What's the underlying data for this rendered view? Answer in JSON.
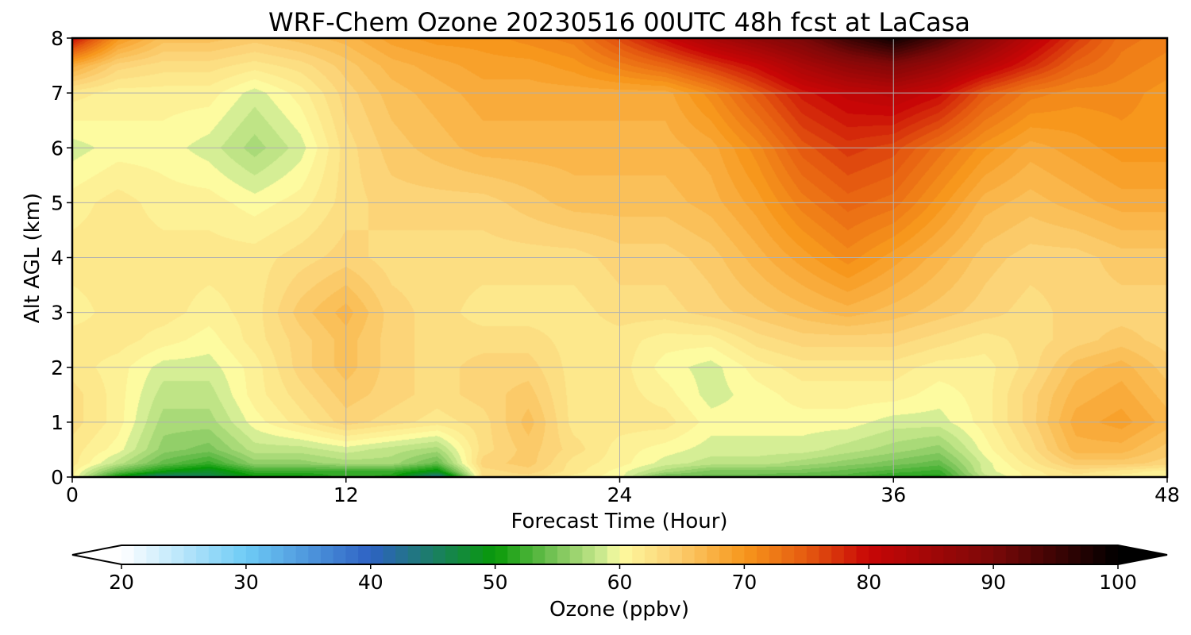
{
  "chart_data": {
    "type": "heatmap",
    "title": "WRF-Chem Ozone  20230516 00UTC 48h fcst at LaCasa",
    "xlabel": "Forecast Time (Hour)",
    "ylabel": "Alt AGL (km)",
    "xlim": [
      0,
      48
    ],
    "ylim": [
      0,
      8
    ],
    "x_ticks": [
      0,
      12,
      24,
      36,
      48
    ],
    "y_ticks": [
      0,
      1,
      2,
      3,
      4,
      5,
      6,
      7,
      8
    ],
    "grid": true,
    "colorbar": {
      "label": "Ozone  (ppbv)",
      "min": 20,
      "max": 100,
      "ticks": [
        20,
        30,
        40,
        50,
        60,
        70,
        80,
        90,
        100
      ],
      "extend": "both",
      "color_stops": [
        [
          20,
          "#ffffff"
        ],
        [
          30,
          "#6ecbf6"
        ],
        [
          40,
          "#2e62c3"
        ],
        [
          50,
          "#089a08"
        ],
        [
          55,
          "#7cc55a"
        ],
        [
          59,
          "#d5ee95"
        ],
        [
          60,
          "#fdfba0"
        ],
        [
          64,
          "#fcd478"
        ],
        [
          70,
          "#f7971c"
        ],
        [
          75,
          "#e55a10"
        ],
        [
          80,
          "#c80606"
        ],
        [
          90,
          "#7a0808"
        ],
        [
          100,
          "#000000"
        ]
      ]
    },
    "x_hours": [
      0,
      2,
      4,
      6,
      8,
      10,
      12,
      14,
      16,
      18,
      20,
      22,
      24,
      26,
      28,
      30,
      32,
      34,
      36,
      38,
      40,
      42,
      44,
      46,
      48
    ],
    "z_km": [
      0,
      0.1,
      0.25,
      0.5,
      1,
      1.5,
      2,
      2.5,
      3,
      4,
      5,
      6,
      7,
      7.5,
      8
    ],
    "values_ppbv": [
      [
        61,
        50,
        43,
        46,
        50,
        50,
        52,
        51,
        42,
        63,
        63,
        61,
        60,
        54,
        54,
        54,
        53,
        53,
        51,
        51,
        58,
        61,
        62,
        61,
        61
      ],
      [
        61,
        54,
        50,
        48,
        52,
        52,
        52,
        52,
        49,
        63,
        64,
        62,
        60,
        57,
        55,
        55,
        55,
        54,
        53,
        52,
        59,
        61,
        63,
        62,
        61
      ],
      [
        62,
        58,
        54,
        52,
        56,
        56,
        57,
        57,
        54,
        64,
        65,
        62,
        61,
        59,
        58,
        58,
        57,
        56,
        55,
        54,
        59,
        62,
        65,
        65,
        64
      ],
      [
        62,
        60,
        56,
        55,
        58,
        58,
        59,
        58,
        57,
        63,
        65,
        63,
        61,
        60,
        59,
        59,
        59,
        58,
        57,
        56,
        60,
        63,
        67,
        67,
        65
      ],
      [
        63,
        61,
        57,
        57,
        60,
        62,
        64,
        63,
        62,
        63,
        66,
        62,
        62,
        62,
        60,
        60,
        60,
        60,
        59,
        59,
        61,
        64,
        68,
        69,
        67
      ],
      [
        63,
        61,
        58,
        58,
        61,
        63,
        65,
        64,
        63,
        64,
        65,
        62,
        62,
        61,
        59,
        60,
        61,
        61,
        61,
        60,
        61,
        64,
        67,
        68,
        66
      ],
      [
        62,
        61,
        59,
        59,
        61,
        64,
        66,
        64,
        63,
        64,
        64,
        62,
        62,
        60,
        59,
        61,
        62,
        62,
        62,
        61,
        61,
        63,
        66,
        67,
        65
      ],
      [
        62,
        62,
        61,
        60,
        62,
        64,
        66,
        64,
        63,
        63,
        63,
        62,
        62,
        61,
        61,
        63,
        64,
        64,
        64,
        63,
        62,
        63,
        64,
        65,
        64
      ],
      [
        61,
        62,
        62,
        61,
        62,
        65,
        67,
        64,
        63,
        62,
        62,
        62,
        63,
        63,
        64,
        65,
        66,
        67,
        66,
        65,
        64,
        63,
        64,
        64,
        64
      ],
      [
        62,
        62,
        62,
        62,
        62,
        63,
        64,
        63,
        63,
        63,
        63,
        63,
        64,
        64,
        65,
        67,
        69,
        71,
        69,
        67,
        65,
        64,
        64,
        65,
        65
      ],
      [
        61,
        62,
        61,
        61,
        60,
        61,
        63,
        64,
        64,
        64,
        65,
        66,
        66,
        66,
        67,
        69,
        72,
        74,
        73,
        70,
        67,
        66,
        67,
        68,
        68
      ],
      [
        59,
        60,
        60,
        59,
        57,
        59,
        63,
        65,
        66,
        67,
        67,
        67,
        67,
        67,
        68,
        71,
        75,
        77,
        76,
        73,
        70,
        68,
        69,
        70,
        70
      ],
      [
        62,
        61,
        61,
        61,
        59,
        61,
        64,
        66,
        67,
        68,
        68,
        68,
        68,
        68,
        71,
        75,
        79,
        81,
        82,
        80,
        75,
        72,
        71,
        71,
        70
      ],
      [
        68,
        64,
        63,
        63,
        62,
        63,
        65,
        67,
        68,
        69,
        69,
        70,
        72,
        74,
        77,
        80,
        84,
        87,
        89,
        86,
        82,
        78,
        74,
        72,
        71
      ],
      [
        80,
        70,
        66,
        66,
        65,
        66,
        67,
        69,
        70,
        70,
        71,
        72,
        76,
        80,
        84,
        87,
        90,
        95,
        99,
        94,
        88,
        82,
        77,
        73,
        72
      ]
    ]
  }
}
